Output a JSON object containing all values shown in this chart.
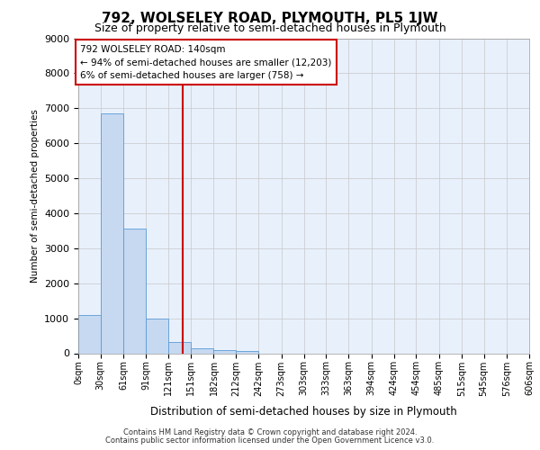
{
  "title_line1": "792, WOLSELEY ROAD, PLYMOUTH, PL5 1JW",
  "title_line2": "Size of property relative to semi-detached houses in Plymouth",
  "xlabel": "Distribution of semi-detached houses by size in Plymouth",
  "ylabel": "Number of semi-detached properties",
  "footer1": "Contains HM Land Registry data © Crown copyright and database right 2024.",
  "footer2": "Contains public sector information licensed under the Open Government Licence v3.0.",
  "annotation_title": "792 WOLSELEY ROAD: 140sqm",
  "annotation_line2": "← 94% of semi-detached houses are smaller (12,203)",
  "annotation_line3": "6% of semi-detached houses are larger (758) →",
  "bar_edges": [
    0,
    30,
    61,
    91,
    121,
    151,
    182,
    212,
    242,
    273,
    303,
    333,
    363,
    394,
    424,
    454,
    485,
    515,
    545,
    576,
    606
  ],
  "bar_values": [
    1100,
    6850,
    3570,
    990,
    310,
    145,
    90,
    70,
    0,
    0,
    0,
    0,
    0,
    0,
    0,
    0,
    0,
    0,
    0,
    0
  ],
  "bar_color": "#c6d9f1",
  "bar_edge_color": "#5b9bd5",
  "vline_color": "#cc0000",
  "vline_x": 140,
  "ylim": [
    0,
    9000
  ],
  "yticks": [
    0,
    1000,
    2000,
    3000,
    4000,
    5000,
    6000,
    7000,
    8000,
    9000
  ],
  "grid_color": "#c8c8c8",
  "background_color": "#e8f0fc",
  "annotation_box_color": "#ffffff",
  "annotation_box_edge": "#cc0000"
}
